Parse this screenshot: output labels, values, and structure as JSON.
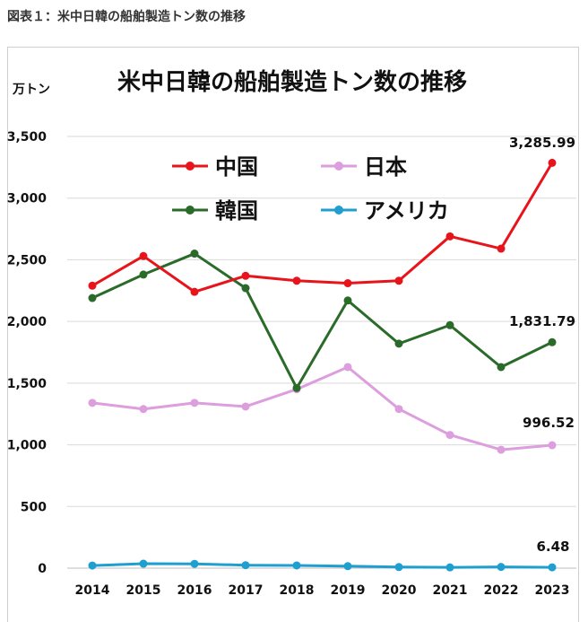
{
  "caption": "図表１：米中日韓の船舶製造トン数の推移",
  "chart_data": {
    "type": "line",
    "title": "米中日韓の船舶製造トン数の推移",
    "ylabel": "万トン",
    "xlabel": "",
    "categories": [
      "2014",
      "2015",
      "2016",
      "2017",
      "2018",
      "2019",
      "2020",
      "2021",
      "2022",
      "2023"
    ],
    "ylim": [
      0,
      3500
    ],
    "yticks": [
      0,
      500,
      1000,
      1500,
      2000,
      2500,
      3000,
      3500
    ],
    "ytick_labels": [
      "0",
      "500",
      "1,000",
      "1,500",
      "2,000",
      "2,500",
      "3,000",
      "3,500"
    ],
    "grid": "horizontal",
    "legend": "top-center, inside plot",
    "series": [
      {
        "name": "中国",
        "color": "#e8141b",
        "values": [
          2290,
          2530,
          2240,
          2370,
          2330,
          2310,
          2330,
          2690,
          2590,
          3285.99
        ],
        "end_label": "3,285.99"
      },
      {
        "name": "日本",
        "color": "#dd9ede",
        "values": [
          1340,
          1290,
          1340,
          1310,
          1450,
          1630,
          1290,
          1080,
          960,
          996.52
        ],
        "end_label": "996.52"
      },
      {
        "name": "韓国",
        "color": "#2a6b2a",
        "values": [
          2190,
          2380,
          2550,
          2270,
          1460,
          2170,
          1820,
          1970,
          1630,
          1831.79
        ],
        "end_label": "1,831.79"
      },
      {
        "name": "アメリカ",
        "color": "#1f9fcf",
        "values": [
          21,
          36,
          35,
          24,
          22,
          16,
          9,
          6,
          10,
          6.48
        ],
        "end_label": "6.48"
      }
    ]
  }
}
